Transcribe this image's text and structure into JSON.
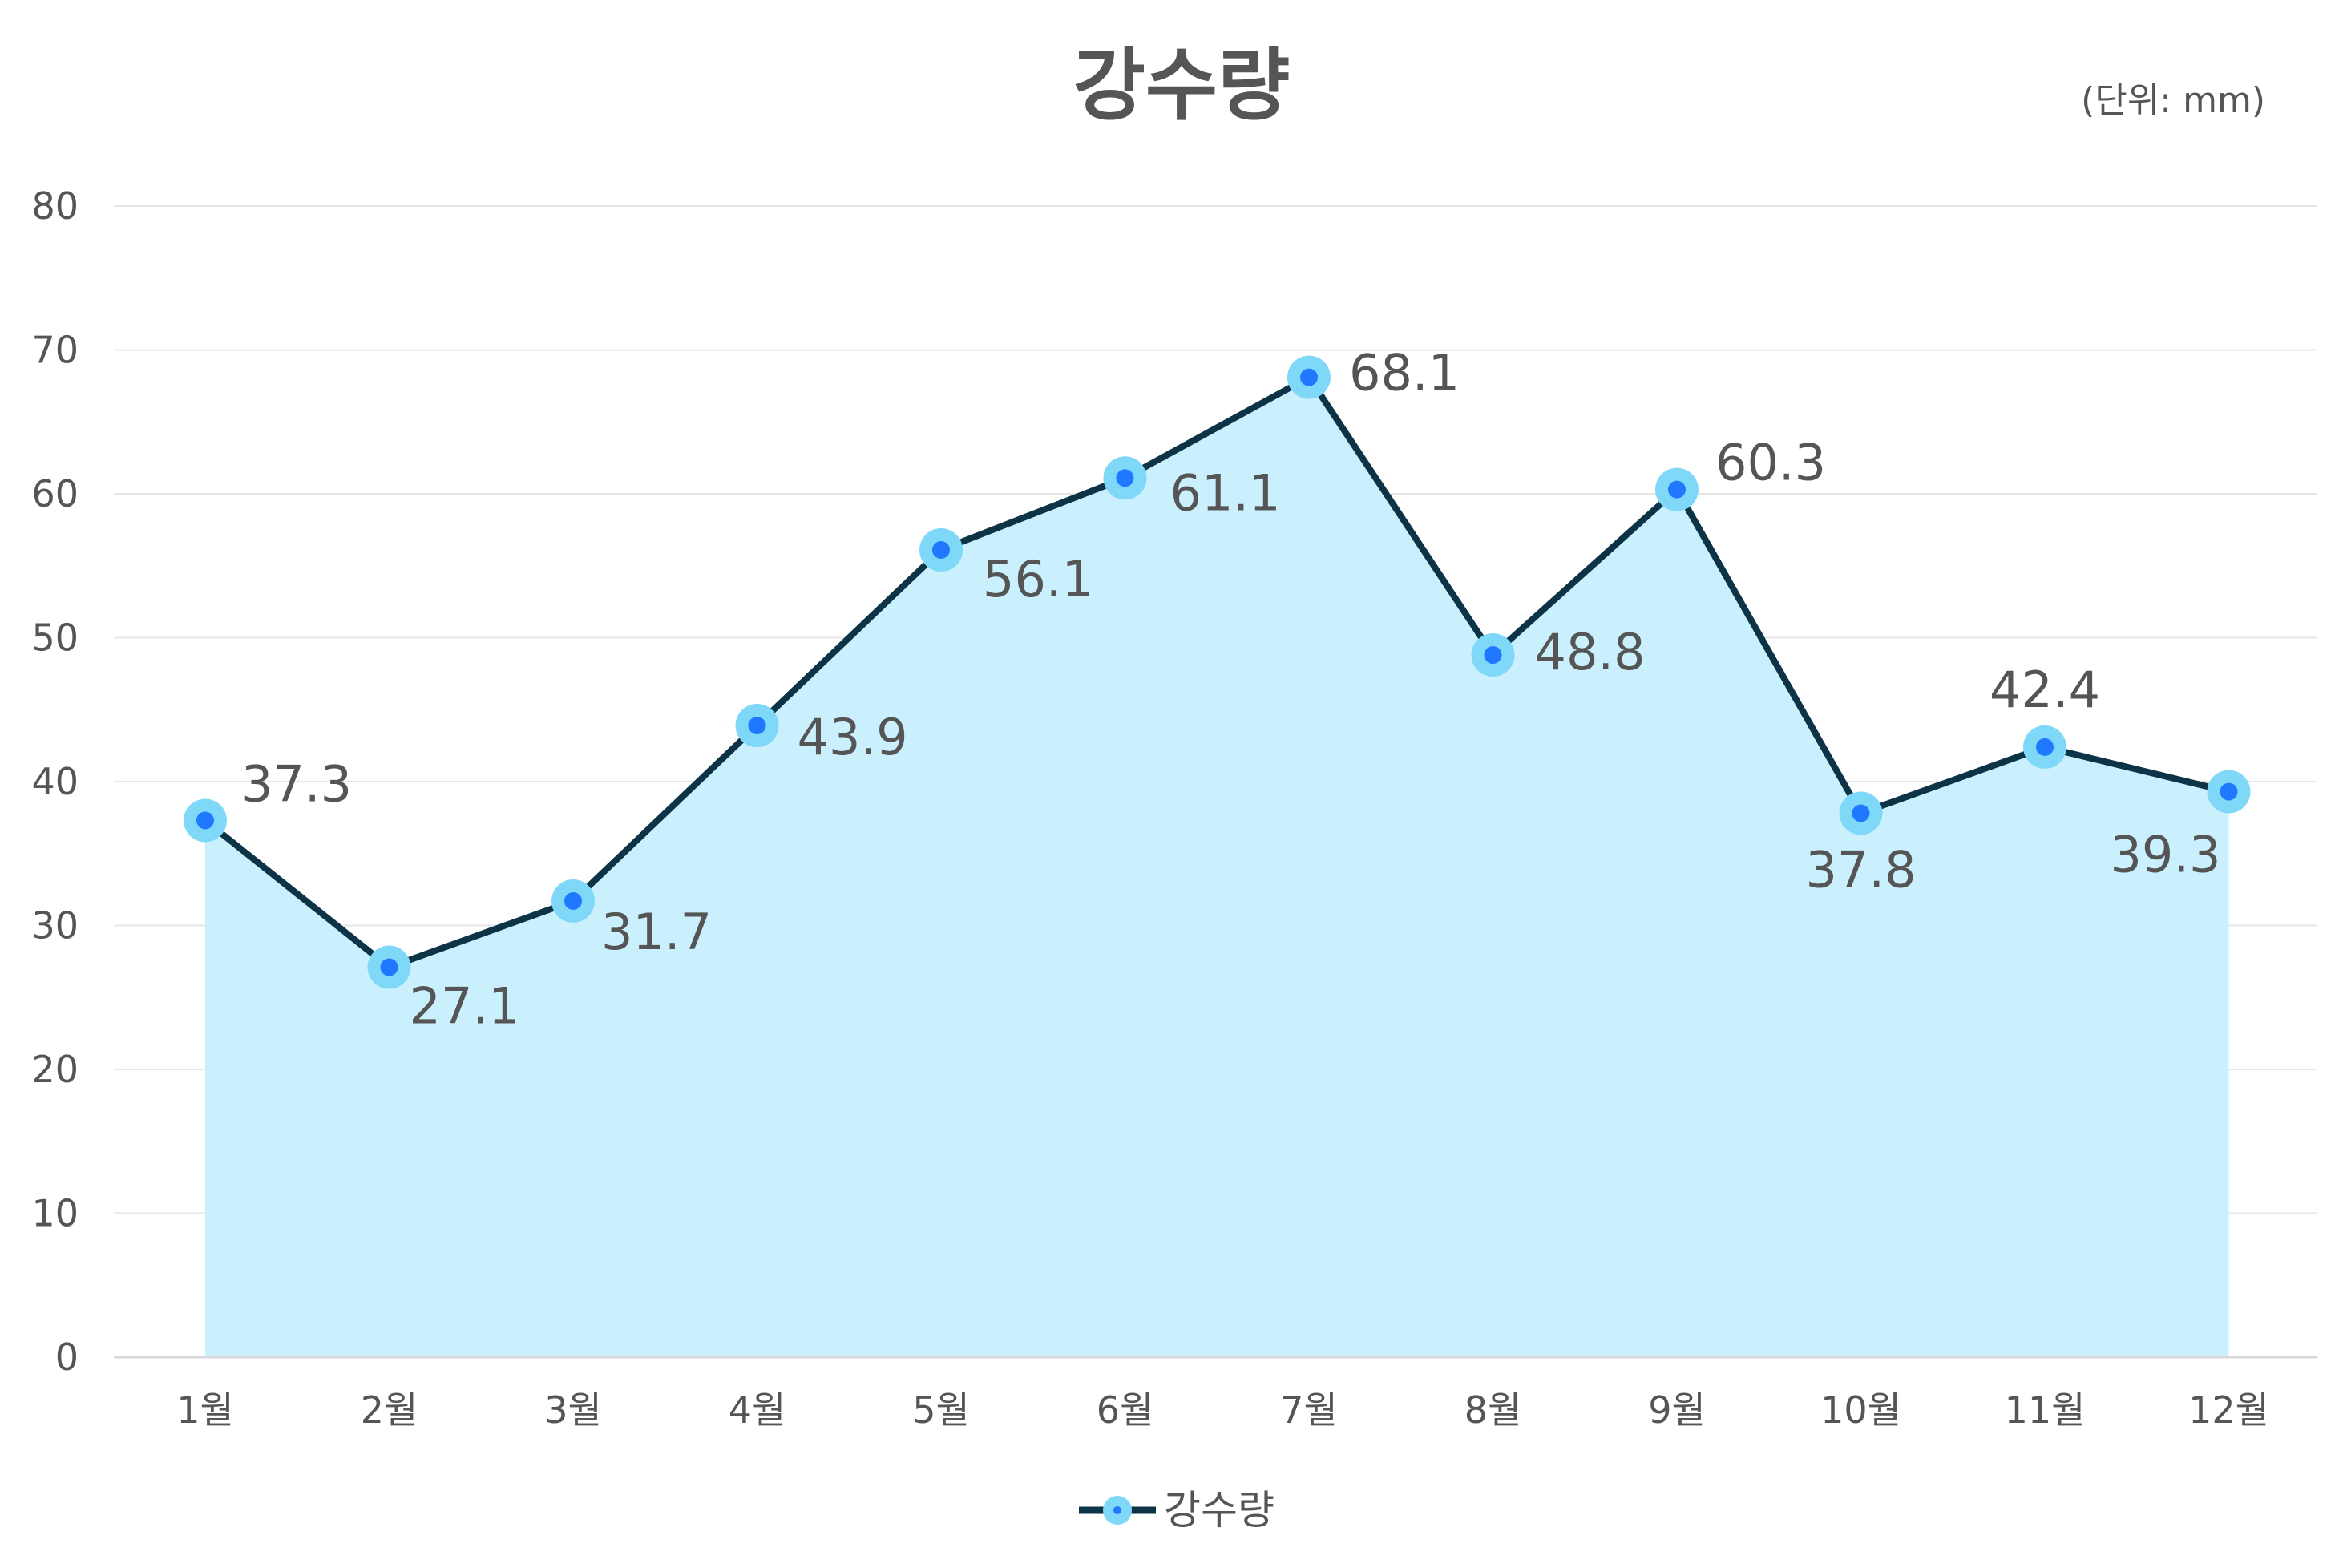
{
  "chart_data": {
    "type": "area",
    "title": "강수량",
    "unit_note": "(단위: mm)",
    "categories": [
      "1월",
      "2월",
      "3월",
      "4월",
      "5월",
      "6월",
      "7월",
      "8월",
      "9월",
      "10월",
      "11월",
      "12월"
    ],
    "series": [
      {
        "name": "강수량",
        "values": [
          37.3,
          27.1,
          31.7,
          43.9,
          56.1,
          61.1,
          68.1,
          48.8,
          60.3,
          37.8,
          42.4,
          39.3
        ]
      }
    ],
    "data_labels": [
      "37.3",
      "27.1",
      "31.7",
      "43.9",
      "56.1",
      "61.1",
      "68.1",
      "48.8",
      "60.3",
      "37.8",
      "42.4",
      "39.3"
    ],
    "y_ticks": [
      "0",
      "10",
      "20",
      "30",
      "40",
      "50",
      "60",
      "70",
      "80"
    ],
    "ylim": [
      0,
      80
    ],
    "grid": true,
    "legend_position": "bottom",
    "colors": {
      "line": "#0d3347",
      "area": "#caf0fe",
      "marker_ring": "#7fd8f8",
      "marker_core": "#1f78ff",
      "grid": "#e6e6e6",
      "text": "#555555"
    }
  }
}
